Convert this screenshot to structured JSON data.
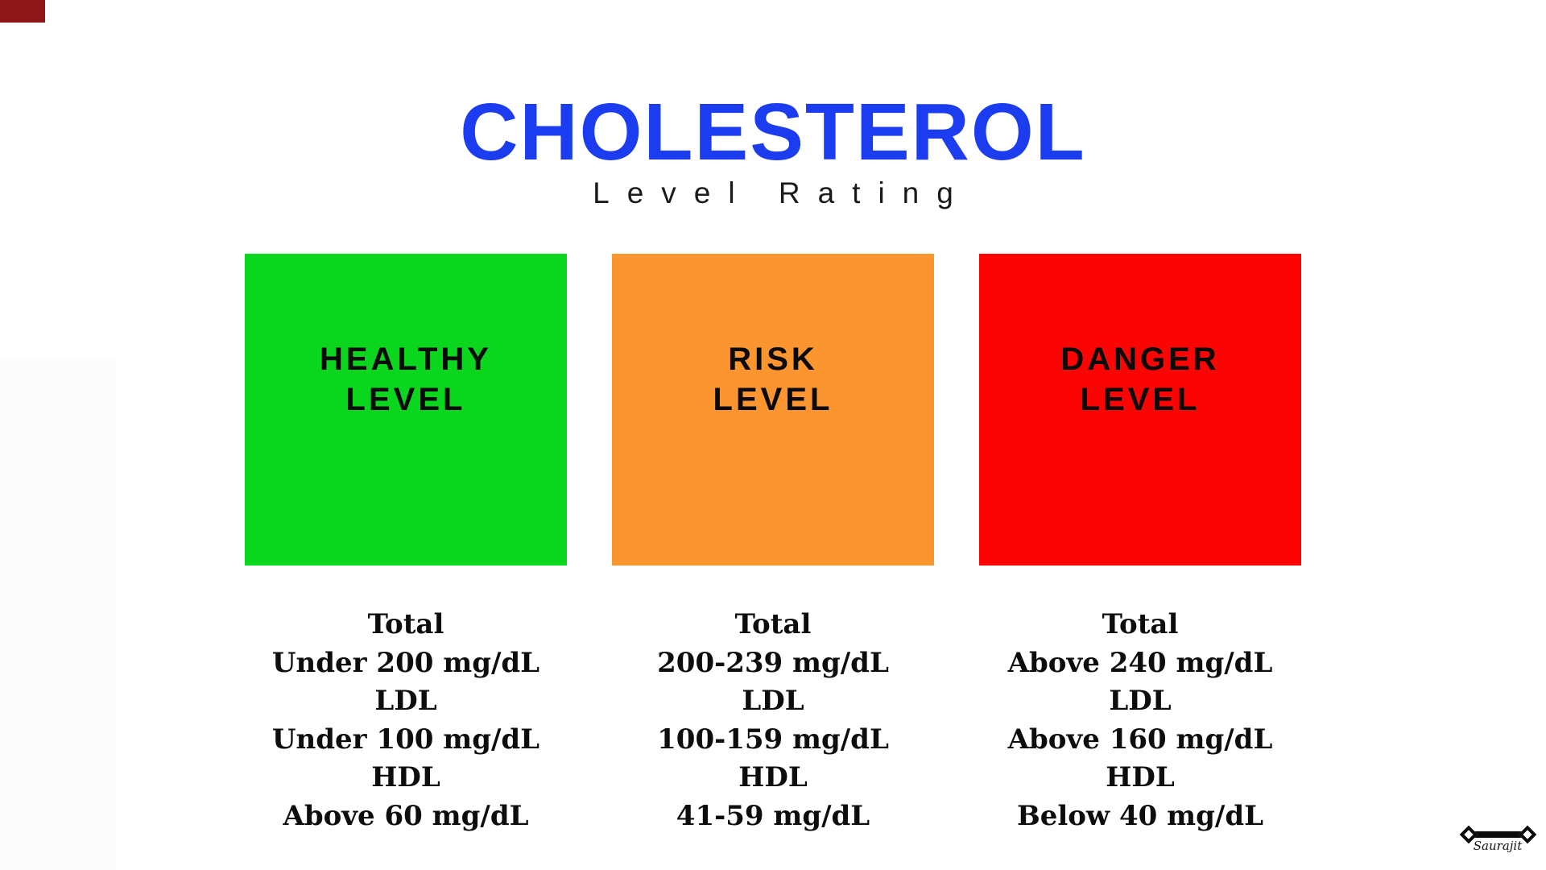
{
  "page": {
    "title": "CHOLESTEROL",
    "subtitle": "Level Rating",
    "title_color": "#1b3def",
    "background_color": "#ffffff",
    "corner_mark_color": "#8e1616"
  },
  "levels": [
    {
      "label_line1": "HEALTHY",
      "label_line2": "LEVEL",
      "color": "#0bd61e",
      "metrics": [
        {
          "name": "Total",
          "value": "Under 200 mg/dL"
        },
        {
          "name": "LDL",
          "value": "Under 100 mg/dL"
        },
        {
          "name": "HDL",
          "value": "Above 60 mg/dL"
        }
      ]
    },
    {
      "label_line1": "RISK",
      "label_line2": "LEVEL",
      "color": "#fb9530",
      "metrics": [
        {
          "name": "Total",
          "value": "200-239 mg/dL"
        },
        {
          "name": "LDL",
          "value": "100-159 mg/dL"
        },
        {
          "name": "HDL",
          "value": "41-59 mg/dL"
        }
      ]
    },
    {
      "label_line1": "DANGER",
      "label_line2": "LEVEL",
      "color": "#fb0404",
      "metrics": [
        {
          "name": "Total",
          "value": "Above 240 mg/dL"
        },
        {
          "name": "LDL",
          "value": "Above 160 mg/dL"
        },
        {
          "name": "HDL",
          "value": "Below 40 mg/dL"
        }
      ]
    }
  ],
  "signature": {
    "text": "Saurajit"
  }
}
